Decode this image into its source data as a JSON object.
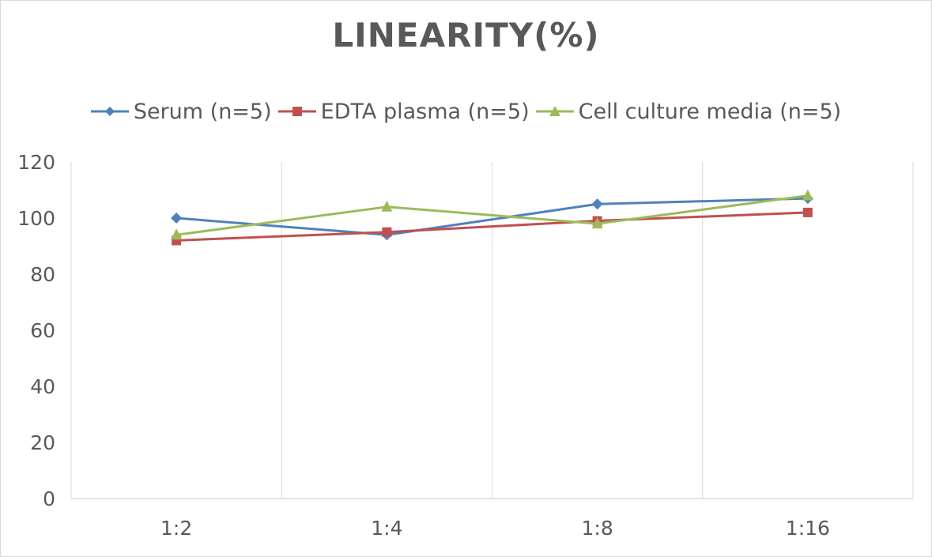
{
  "chart_data": {
    "type": "line",
    "title": "LINEARITY(%)",
    "xlabel": "",
    "ylabel": "",
    "categories": [
      "1:2",
      "1:4",
      "1:8",
      "1:16"
    ],
    "ylim": [
      0,
      120
    ],
    "yticks": [
      0,
      20,
      40,
      60,
      80,
      100,
      120
    ],
    "grid": "vertical",
    "legend_position": "top",
    "series": [
      {
        "name": "Serum (n=5)",
        "values": [
          100,
          94,
          105,
          107
        ],
        "color": "#4f81bd",
        "marker": "diamond"
      },
      {
        "name": "EDTA plasma (n=5)",
        "values": [
          92,
          95,
          99,
          102
        ],
        "color": "#c0504d",
        "marker": "square"
      },
      {
        "name": "Cell culture media (n=5)",
        "values": [
          94,
          104,
          98,
          108
        ],
        "color": "#9bbb59",
        "marker": "triangle"
      }
    ]
  }
}
